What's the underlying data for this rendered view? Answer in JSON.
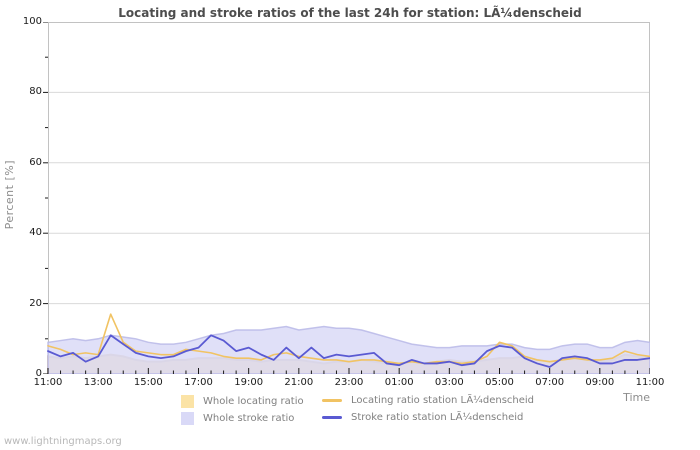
{
  "title": "Locating and stroke ratios of the last 24h for station: LÃ¼denscheid",
  "watermark": "www.lightningmaps.org",
  "axes": {
    "y_label": "Percent  [%]",
    "x_label": "Time"
  },
  "legend": {
    "position": "bottom",
    "items": [
      {
        "label": "Whole locating ratio",
        "type": "area",
        "color": "#fbe3a6"
      },
      {
        "label": "Whole stroke ratio",
        "type": "area",
        "color": "#d9d9f7"
      },
      {
        "label": "Locating ratio station LÃ¼denscheid",
        "type": "line",
        "color": "#f1c363"
      },
      {
        "label": "Stroke ratio station LÃ¼denscheid",
        "type": "line",
        "color": "#5a5ad2"
      }
    ]
  },
  "chart_data": {
    "type": "area",
    "title": "Locating and stroke ratios of the last 24h for station: LÃ¼denscheid",
    "xlabel": "Time",
    "ylabel": "Percent [%]",
    "ylim": [
      0,
      100
    ],
    "grid": true,
    "legend_position": "bottom",
    "interval_minutes": 30,
    "x_ticks_major": [
      "11:00",
      "13:00",
      "15:00",
      "17:00",
      "19:00",
      "21:00",
      "23:00",
      "01:00",
      "03:00",
      "05:00",
      "07:00",
      "09:00",
      "11:00"
    ],
    "y_ticks": [
      0,
      20,
      40,
      60,
      80,
      100
    ],
    "colors": {
      "grid": "#d9d9d9",
      "frame": "#c2c2c2",
      "tick": "#1a1a1a"
    },
    "series": [
      {
        "name": "Whole locating ratio",
        "type": "area",
        "fill": "#fbe3a6",
        "stroke": "#ddc5a0",
        "color": "#fbe3a6",
        "values": [
          5,
          4.5,
          5,
          4.5,
          5,
          5.5,
          5,
          4,
          3.5,
          3.5,
          4,
          4,
          4.5,
          4.5,
          4.5,
          4,
          4,
          3.5,
          4,
          4,
          4,
          3.5,
          3,
          3.5,
          3.5,
          4,
          3.5,
          3,
          3,
          3.5,
          3,
          3.5,
          4,
          3.5,
          3.5,
          4,
          4.5,
          4.5,
          5,
          4,
          3.5,
          4,
          4.5,
          4,
          3.5,
          4,
          5.5,
          5,
          4.5
        ]
      },
      {
        "name": "Whole stroke ratio",
        "type": "area",
        "fill": "#d9d9f7",
        "stroke": "#b9b9e8",
        "color": "#d9d9f7",
        "values": [
          9,
          9.5,
          10,
          9.5,
          10,
          11,
          10.5,
          10,
          9,
          8.5,
          8.5,
          9,
          10,
          11,
          11.5,
          12.5,
          12.5,
          12.5,
          13,
          13.5,
          12.5,
          13,
          13.5,
          13,
          13,
          12.5,
          11.5,
          10.5,
          9.5,
          8.5,
          8,
          7.5,
          7.5,
          8,
          8,
          8,
          8.5,
          8.5,
          7.5,
          7,
          7,
          8,
          8.5,
          8.5,
          7.5,
          7.5,
          9,
          9.5,
          9
        ]
      },
      {
        "name": "Locating ratio station LÃ¼denscheid",
        "type": "line",
        "color": "#f1c363",
        "values": [
          8,
          7,
          5.5,
          6,
          5.5,
          17,
          9,
          6.5,
          6,
          5.5,
          5.5,
          7,
          6.5,
          6,
          5,
          4.5,
          4.5,
          4,
          5.5,
          6,
          5,
          4.5,
          4,
          4,
          3.5,
          4,
          4,
          3.5,
          3,
          3.5,
          3,
          3.5,
          3.5,
          3,
          3.5,
          5,
          9,
          8,
          5,
          4,
          3.5,
          4,
          4.5,
          4,
          4,
          4.5,
          6.5,
          5.5,
          5
        ]
      },
      {
        "name": "Stroke ratio station LÃ¼denscheid",
        "type": "line",
        "color": "#5a5ad2",
        "values": [
          6.5,
          5,
          6,
          3.5,
          5,
          11,
          8.5,
          6,
          5,
          4.5,
          5,
          6.5,
          7.5,
          11,
          9.5,
          6.5,
          7.5,
          5.5,
          4,
          7.5,
          4.5,
          7.5,
          4.5,
          5.5,
          5,
          5.5,
          6,
          3,
          2.5,
          4,
          3,
          3,
          3.5,
          2.5,
          3,
          6.5,
          8,
          7.5,
          4.5,
          3,
          2,
          4.5,
          5,
          4.5,
          3,
          3,
          4,
          4,
          4.5
        ]
      }
    ]
  }
}
